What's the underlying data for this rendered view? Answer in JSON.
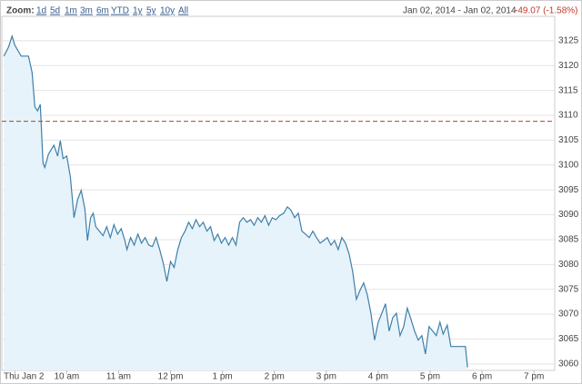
{
  "toolbar": {
    "zoom_label": "Zoom:",
    "ranges": [
      "1d",
      "5d",
      "1m",
      "3m",
      "6m",
      "YTD",
      "1y",
      "5y",
      "10y",
      "All"
    ],
    "date_range": "Jan 02, 2014 - Jan 02, 2014",
    "change": "-49.07 (-1.58%)"
  },
  "chart_data": {
    "type": "area",
    "color": "#3f7fa8",
    "fill": "#e6f3fb",
    "grid": true,
    "reference_value": 3108.8,
    "reference_color": "#c0392b",
    "x": [
      8.79,
      8.877,
      8.948,
      9.0,
      9.123,
      9.263,
      9.333,
      9.386,
      9.439,
      9.491,
      9.544,
      9.579,
      9.649,
      9.754,
      9.825,
      9.877,
      9.93,
      10.0,
      10.07,
      10.14,
      10.21,
      10.28,
      10.35,
      10.4,
      10.46,
      10.51,
      10.56,
      10.63,
      10.7,
      10.77,
      10.84,
      10.91,
      10.98,
      11.05,
      11.12,
      11.16,
      11.23,
      11.3,
      11.37,
      11.44,
      11.51,
      11.58,
      11.65,
      11.72,
      11.79,
      11.86,
      11.93,
      12.0,
      12.07,
      12.14,
      12.21,
      12.28,
      12.35,
      12.42,
      12.49,
      12.56,
      12.63,
      12.7,
      12.77,
      12.84,
      12.91,
      12.98,
      13.05,
      13.12,
      13.19,
      13.26,
      13.33,
      13.4,
      13.47,
      13.54,
      13.61,
      13.68,
      13.75,
      13.82,
      13.89,
      13.96,
      14.03,
      14.1,
      14.18,
      14.25,
      14.32,
      14.39,
      14.46,
      14.53,
      14.6,
      14.67,
      14.74,
      14.81,
      14.88,
      14.95,
      15.02,
      15.09,
      15.16,
      15.23,
      15.3,
      15.37,
      15.44,
      15.51,
      15.58,
      15.65,
      15.72,
      15.79,
      15.86,
      15.93,
      16.0,
      16.07,
      16.14,
      16.21,
      16.28,
      16.35,
      16.42,
      16.49,
      16.56,
      16.63,
      16.7,
      16.77,
      16.84,
      16.91,
      16.98,
      17.05,
      17.12,
      17.19,
      17.25,
      17.33,
      17.4,
      17.68,
      17.72
    ],
    "values": [
      3121.9,
      3123.7,
      3125.9,
      3124.1,
      3121.9,
      3121.9,
      3118.6,
      3111.7,
      3110.9,
      3112.2,
      3100.4,
      3099.5,
      3102.2,
      3104.0,
      3101.8,
      3104.9,
      3101.3,
      3101.8,
      3097.6,
      3089.4,
      3093.1,
      3094.9,
      3091.2,
      3084.8,
      3089.4,
      3090.3,
      3087.6,
      3086.7,
      3085.8,
      3087.6,
      3085.4,
      3088.0,
      3086.1,
      3087.2,
      3084.8,
      3083.0,
      3085.4,
      3083.9,
      3086.1,
      3084.3,
      3085.4,
      3083.9,
      3083.6,
      3085.4,
      3083.0,
      3080.3,
      3076.6,
      3080.6,
      3079.4,
      3083.0,
      3085.4,
      3086.7,
      3088.5,
      3087.2,
      3089.0,
      3087.6,
      3088.5,
      3086.7,
      3087.6,
      3084.8,
      3086.1,
      3084.3,
      3085.4,
      3083.9,
      3085.4,
      3083.9,
      3088.5,
      3089.4,
      3088.5,
      3089.0,
      3087.9,
      3089.4,
      3088.5,
      3089.8,
      3087.9,
      3089.4,
      3089.0,
      3089.8,
      3090.3,
      3091.6,
      3090.9,
      3089.4,
      3090.3,
      3086.7,
      3086.1,
      3085.4,
      3086.7,
      3085.4,
      3084.3,
      3084.8,
      3085.4,
      3083.9,
      3084.8,
      3083.0,
      3085.4,
      3084.3,
      3082.1,
      3078.5,
      3073.0,
      3074.8,
      3076.3,
      3073.9,
      3070.2,
      3064.8,
      3068.4,
      3070.2,
      3072.1,
      3066.6,
      3069.3,
      3070.2,
      3065.7,
      3067.5,
      3071.2,
      3069.0,
      3066.6,
      3064.8,
      3065.7,
      3062.0,
      3067.5,
      3066.6,
      3065.7,
      3068.4,
      3066.0,
      3067.8,
      3063.5,
      3063.5,
      3059.3
    ],
    "xlim": [
      8.75,
      19.4
    ],
    "xticks": [
      {
        "value": 9,
        "label": "Thu Jan 2"
      },
      {
        "value": 10,
        "label": "10 am"
      },
      {
        "value": 11,
        "label": "11 am"
      },
      {
        "value": 12,
        "label": "12 pm"
      },
      {
        "value": 13,
        "label": "1 pm"
      },
      {
        "value": 14,
        "label": "2 pm"
      },
      {
        "value": 15,
        "label": "3 pm"
      },
      {
        "value": 16,
        "label": "4 pm"
      },
      {
        "value": 17,
        "label": "5 pm"
      },
      {
        "value": 18,
        "label": "6 pm"
      },
      {
        "value": 19,
        "label": "7 pm"
      }
    ],
    "ylim": [
      3058.7,
      3129.9
    ],
    "yticks": [
      3060,
      3065,
      3070,
      3075,
      3080,
      3085,
      3090,
      3095,
      3100,
      3105,
      3110,
      3115,
      3120,
      3125
    ]
  }
}
